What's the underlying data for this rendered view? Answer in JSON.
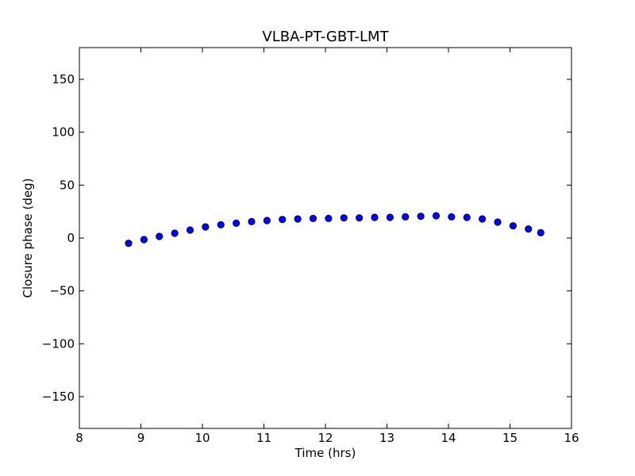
{
  "chart_data": {
    "type": "scatter",
    "title": "VLBA-PT-GBT-LMT",
    "xlabel": "Time (hrs)",
    "ylabel": "Closure phase (deg)",
    "xlim": [
      8,
      16
    ],
    "ylim": [
      -180,
      180
    ],
    "xticks": [
      8,
      9,
      10,
      11,
      12,
      13,
      14,
      15,
      16
    ],
    "xtick_labels": [
      "8",
      "9",
      "10",
      "11",
      "12",
      "13",
      "14",
      "15",
      "16"
    ],
    "yticks": [
      -150,
      -100,
      -50,
      0,
      50,
      100,
      150
    ],
    "ytick_labels": [
      "−150",
      "−100",
      "−50",
      "0",
      "50",
      "100",
      "150"
    ],
    "grid": false,
    "series": [
      {
        "name": "closure phase",
        "color": "#0000ff",
        "edge_color": "#000000",
        "marker": "circle",
        "x": [
          8.8,
          9.05,
          9.3,
          9.55,
          9.8,
          10.05,
          10.3,
          10.55,
          10.8,
          11.05,
          11.3,
          11.55,
          11.8,
          12.05,
          12.3,
          12.55,
          12.8,
          13.05,
          13.3,
          13.55,
          13.8,
          14.05,
          14.3,
          14.55,
          14.8,
          15.05,
          15.3,
          15.5
        ],
        "y": [
          -5,
          -1.5,
          1.5,
          4.5,
          7.5,
          10.5,
          12.5,
          14,
          15.5,
          16.5,
          17.5,
          18,
          18.5,
          18.5,
          19,
          19,
          19.5,
          19.5,
          20,
          20.5,
          21,
          20,
          19.5,
          18,
          15,
          11.5,
          8.5,
          5
        ]
      }
    ]
  }
}
